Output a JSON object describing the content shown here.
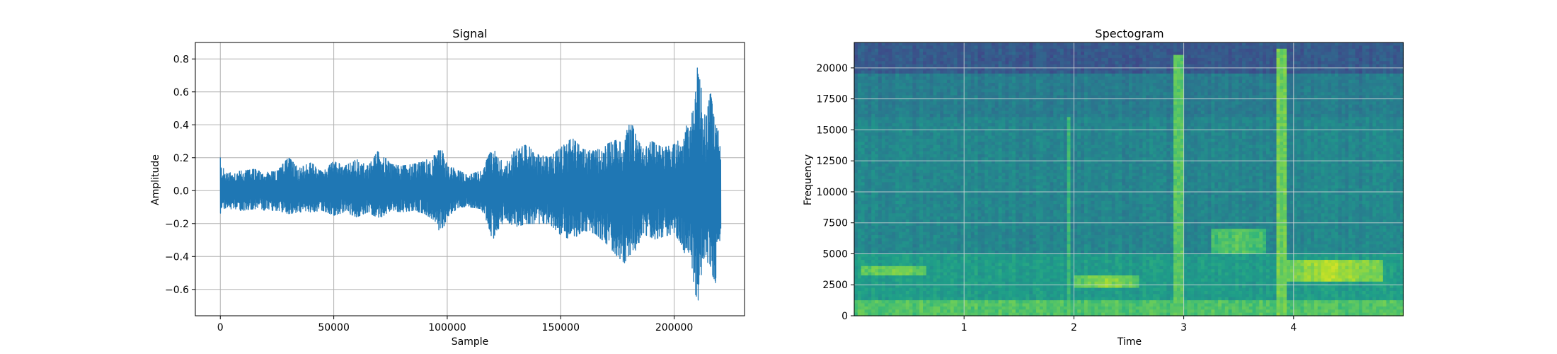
{
  "chart_data": [
    {
      "type": "line",
      "title": "Signal",
      "xlabel": "Sample",
      "ylabel": "Amplitude",
      "xlim": [
        -11000,
        231000
      ],
      "ylim": [
        -0.76,
        0.9
      ],
      "xticks": [
        0,
        50000,
        100000,
        150000,
        200000
      ],
      "xtick_labels": [
        "0",
        "50000",
        "100000",
        "150000",
        "200000"
      ],
      "yticks": [
        -0.6,
        -0.4,
        -0.2,
        0.0,
        0.2,
        0.4,
        0.6,
        0.8
      ],
      "ytick_labels": [
        "−0.6",
        "−0.4",
        "−0.2",
        "0.0",
        "0.2",
        "0.4",
        "0.6",
        "0.8"
      ],
      "grid": true,
      "color": "#1f77b4",
      "series": [
        {
          "x": [
            0,
            3000,
            6000,
            10000,
            15000,
            20000,
            25000,
            30000,
            35000,
            40000,
            45000,
            50000,
            55000,
            60000,
            65000,
            70000,
            75000,
            80000,
            85000,
            90000,
            95000,
            97000,
            100000,
            105000,
            110000,
            115000,
            120000,
            125000,
            130000,
            135000,
            140000,
            145000,
            150000,
            155000,
            160000,
            165000,
            170000,
            175000,
            178000,
            180000,
            183000,
            186000,
            190000,
            195000,
            200000,
            203000,
            205000,
            207000,
            209000,
            211000,
            212500,
            214000,
            216000,
            218000,
            219500,
            220500
          ],
          "upper": [
            0.17,
            0.1,
            0.12,
            0.12,
            0.13,
            0.11,
            0.12,
            0.2,
            0.14,
            0.17,
            0.11,
            0.18,
            0.15,
            0.19,
            0.15,
            0.25,
            0.16,
            0.15,
            0.16,
            0.18,
            0.22,
            0.27,
            0.16,
            0.12,
            0.1,
            0.12,
            0.26,
            0.16,
            0.25,
            0.28,
            0.22,
            0.2,
            0.26,
            0.32,
            0.25,
            0.24,
            0.28,
            0.31,
            0.27,
            0.46,
            0.34,
            0.25,
            0.3,
            0.26,
            0.28,
            0.32,
            0.4,
            0.36,
            0.62,
            0.83,
            0.5,
            0.44,
            0.6,
            0.4,
            0.36,
            0.26
          ],
          "lower": [
            -0.12,
            -0.1,
            -0.12,
            -0.12,
            -0.11,
            -0.12,
            -0.12,
            -0.14,
            -0.13,
            -0.13,
            -0.12,
            -0.15,
            -0.13,
            -0.16,
            -0.13,
            -0.17,
            -0.12,
            -0.13,
            -0.12,
            -0.14,
            -0.19,
            -0.27,
            -0.16,
            -0.1,
            -0.1,
            -0.11,
            -0.3,
            -0.18,
            -0.22,
            -0.2,
            -0.2,
            -0.2,
            -0.27,
            -0.3,
            -0.24,
            -0.26,
            -0.32,
            -0.4,
            -0.44,
            -0.39,
            -0.38,
            -0.25,
            -0.3,
            -0.28,
            -0.26,
            -0.32,
            -0.4,
            -0.36,
            -0.62,
            -0.68,
            -0.4,
            -0.44,
            -0.46,
            -0.58,
            -0.36,
            -0.25
          ]
        }
      ]
    },
    {
      "type": "heatmap",
      "title": "Spectogram",
      "xlabel": "Time",
      "ylabel": "Frequency",
      "xlim": [
        0,
        5.0
      ],
      "ylim": [
        0,
        22050
      ],
      "xticks": [
        1,
        2,
        3,
        4
      ],
      "xtick_labels": [
        "1",
        "2",
        "3",
        "4"
      ],
      "yticks": [
        0,
        2500,
        5000,
        7500,
        10000,
        12500,
        15000,
        17500,
        20000
      ],
      "ytick_labels": [
        "0",
        "2500",
        "5000",
        "7500",
        "10000",
        "12500",
        "15000",
        "17500",
        "20000"
      ],
      "grid": true,
      "colormap": "viridis",
      "colors": {
        "low": "#2c728e",
        "mid": "#21918c",
        "high": "#fde725"
      },
      "bands": [
        {
          "f_low": 16000,
          "f_high": 22050,
          "time_start": 0,
          "time_end": 5.0,
          "level": 0.28
        },
        {
          "f_low": 16000,
          "f_high": 19500,
          "time_start": 0,
          "time_end": 5.0,
          "level": 0.42
        },
        {
          "f_low": 5000,
          "f_high": 16000,
          "time_start": 0,
          "time_end": 5.0,
          "level": 0.46
        },
        {
          "f_low": 0,
          "f_high": 5000,
          "time_start": 0,
          "time_end": 5.0,
          "level": 0.55
        },
        {
          "f_low": 0,
          "f_high": 1200,
          "time_start": 0,
          "time_end": 5.0,
          "level": 0.72
        }
      ],
      "events": [
        {
          "time": 1.95,
          "width": 0.05,
          "f_low": 0,
          "f_high": 16000,
          "level": 0.66
        },
        {
          "time": 2.95,
          "width": 0.1,
          "f_low": 0,
          "f_high": 21000,
          "level": 0.76
        },
        {
          "time": 3.9,
          "width": 0.1,
          "f_low": 0,
          "f_high": 21500,
          "level": 0.78
        },
        {
          "time": 0.35,
          "width": 0.6,
          "f_low": 3300,
          "f_high": 4100,
          "level": 0.8
        },
        {
          "time": 2.3,
          "width": 0.6,
          "f_low": 2200,
          "f_high": 3200,
          "level": 0.82
        },
        {
          "time": 4.35,
          "width": 0.9,
          "f_low": 2800,
          "f_high": 4500,
          "level": 0.88
        },
        {
          "time": 3.5,
          "width": 0.5,
          "f_low": 5000,
          "f_high": 7000,
          "level": 0.74
        }
      ]
    }
  ]
}
